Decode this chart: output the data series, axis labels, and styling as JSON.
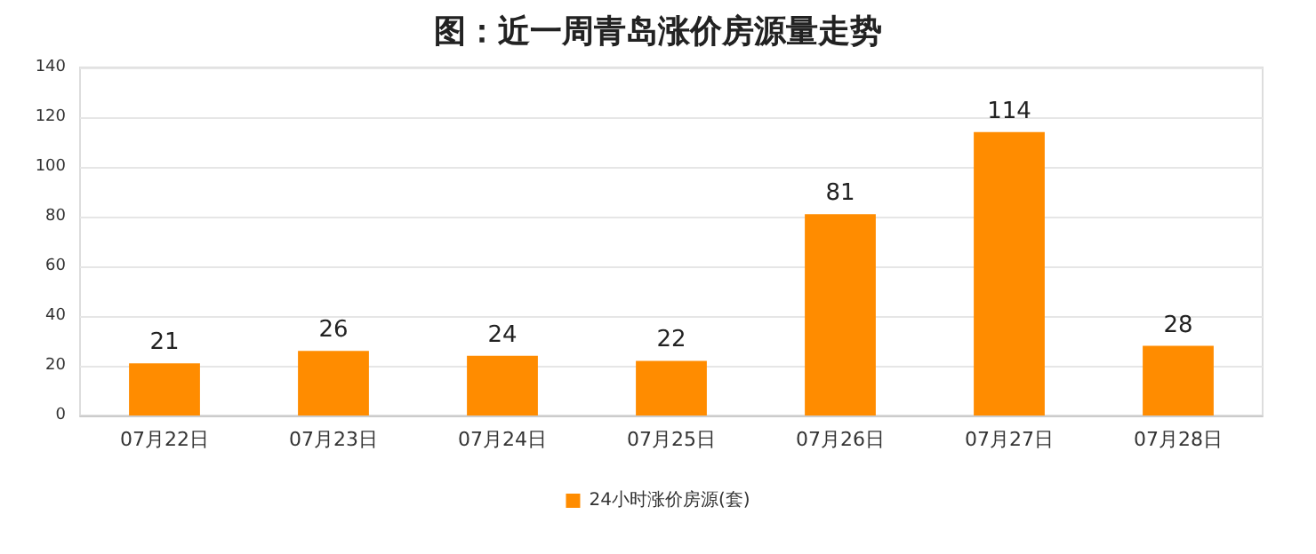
{
  "chart_data": {
    "type": "bar",
    "title": "图：近一周青岛涨价房源量走势",
    "categories": [
      "07月22日",
      "07月23日",
      "07月24日",
      "07月25日",
      "07月26日",
      "07月27日",
      "07月28日"
    ],
    "series": [
      {
        "name": "24小时涨价房源(套)",
        "color": "#ff8c00",
        "values": [
          21,
          26,
          24,
          22,
          81,
          114,
          28
        ]
      }
    ],
    "ylim": [
      0,
      140
    ],
    "yticks": [
      0,
      20,
      40,
      60,
      80,
      100,
      120,
      140
    ],
    "grid": "y",
    "legend": "bottom",
    "data_labels": true
  }
}
